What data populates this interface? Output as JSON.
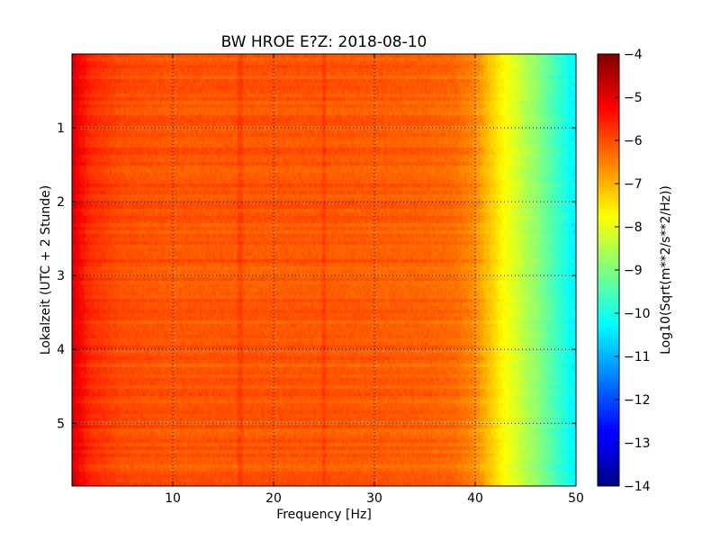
{
  "chart_data": {
    "type": "heatmap",
    "title": "BW HROE E?Z: 2018-08-10",
    "xlabel": "Frequency [Hz]",
    "ylabel": "Lokalzeit (UTC + 2 Stunde)",
    "colorbar_label": "Log10(Sqrt(m**2/s**2/Hz))",
    "colormap": "jet",
    "xlim": [
      0,
      50
    ],
    "ylim": [
      0,
      5.85
    ],
    "y_inverted": true,
    "clim": [
      -14,
      -4
    ],
    "xticks": [
      10,
      20,
      30,
      40,
      50
    ],
    "xtick_labels": [
      "10",
      "20",
      "30",
      "40",
      "50"
    ],
    "yticks": [
      1,
      2,
      3,
      4,
      5
    ],
    "ytick_labels": [
      "1",
      "2",
      "3",
      "4",
      "5"
    ],
    "cbar_ticks": [
      -4,
      -5,
      -6,
      -7,
      -8,
      -9,
      -10,
      -11,
      -12,
      -13,
      -14
    ],
    "cbar_tick_labels": [
      "−4",
      "−5",
      "−6",
      "−7",
      "−8",
      "−9",
      "−10",
      "−11",
      "−12",
      "−13",
      "−14"
    ],
    "grid": "dotted",
    "spectrum_profile": {
      "freq_hz": [
        0,
        0.5,
        1,
        2,
        5,
        10,
        15,
        20,
        25,
        30,
        35,
        38,
        40,
        41,
        42,
        43,
        44,
        45,
        46,
        47,
        48,
        49,
        50
      ],
      "level": [
        -4.9,
        -5.1,
        -5.4,
        -5.7,
        -6.0,
        -6.1,
        -6.1,
        -6.1,
        -6.1,
        -6.15,
        -6.2,
        -6.3,
        -6.6,
        -7.0,
        -7.4,
        -7.8,
        -8.1,
        -8.5,
        -8.8,
        -9.2,
        -9.6,
        -10.0,
        -10.4
      ]
    },
    "line_features_hz": [
      16.7,
      25.0
    ]
  }
}
